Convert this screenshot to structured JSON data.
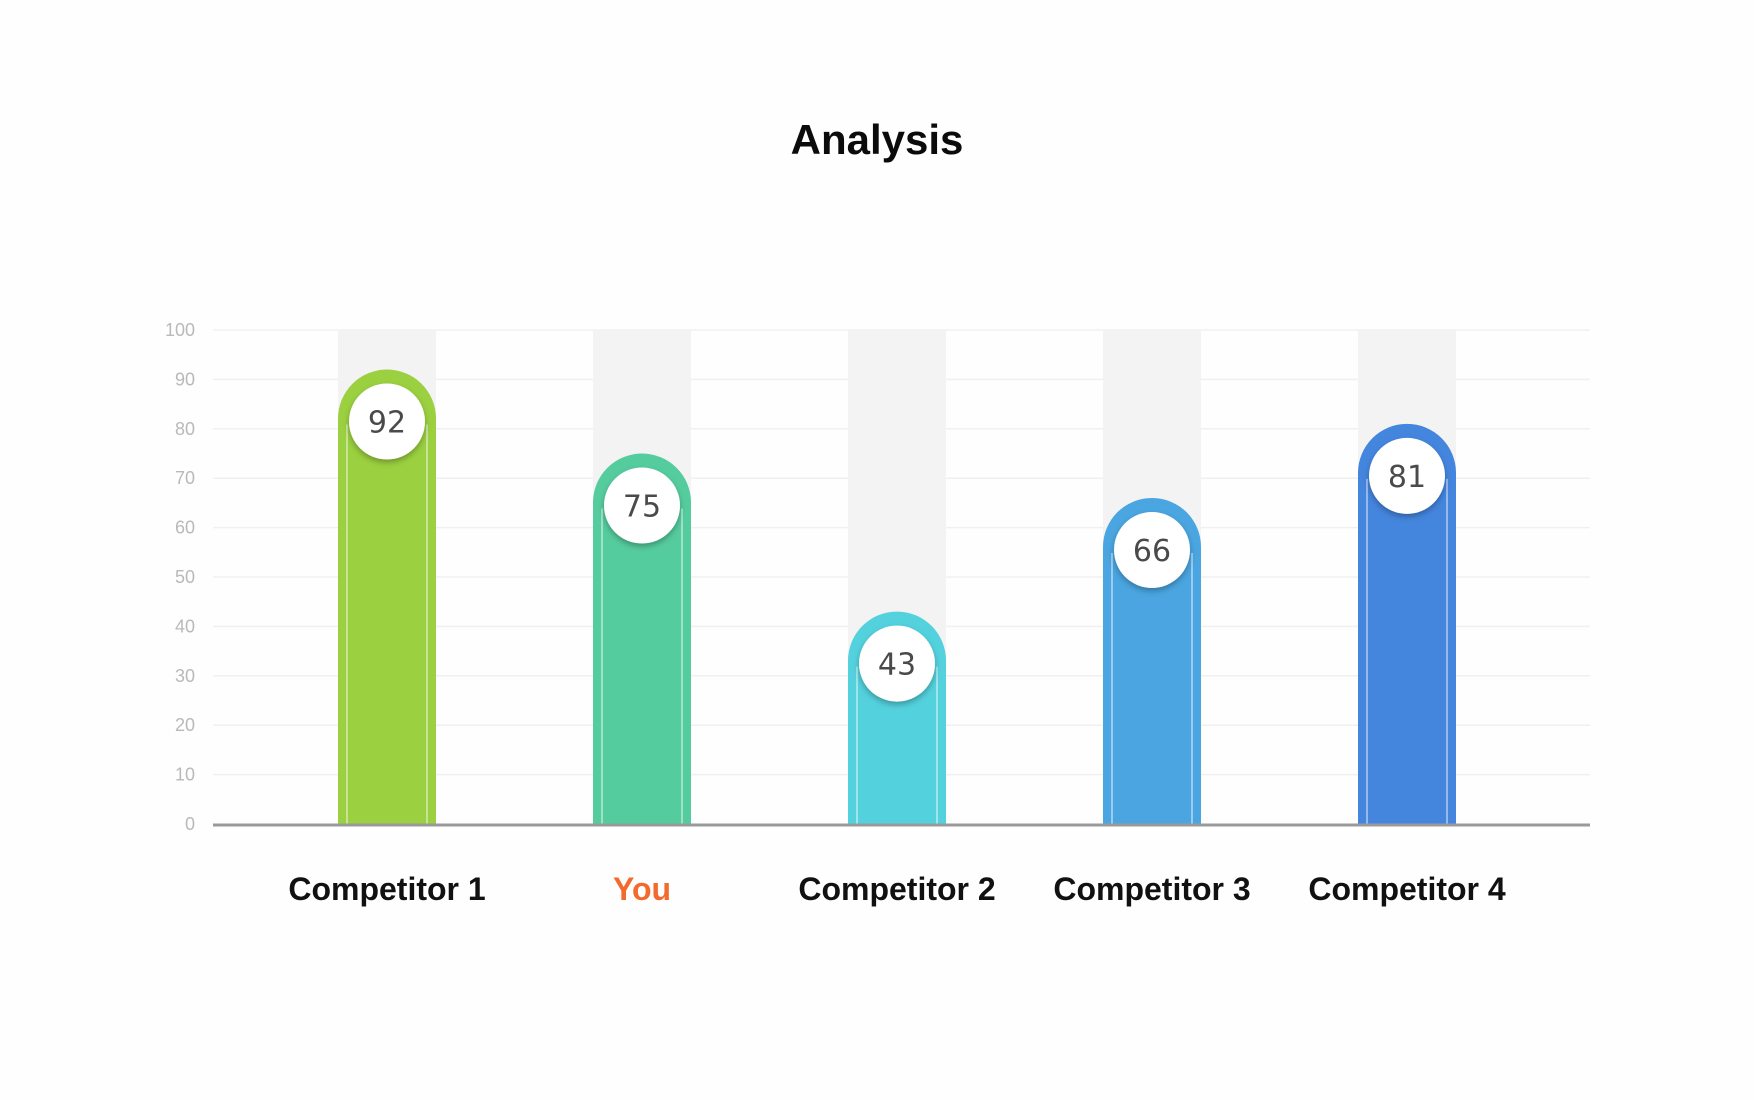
{
  "chart_data": {
    "type": "bar",
    "title": "Analysis",
    "xlabel": "",
    "ylabel": "",
    "ylim": [
      0,
      100
    ],
    "yticks": [
      0,
      10,
      20,
      30,
      40,
      50,
      60,
      70,
      80,
      90,
      100
    ],
    "grid": true,
    "categories": [
      "Competitor 1",
      "You",
      "Competitor 2",
      "Competitor 3",
      "Competitor 4"
    ],
    "values": [
      92,
      75,
      43,
      66,
      81
    ],
    "bar_colors": [
      "#9bd040",
      "#55cc9e",
      "#53d1dd",
      "#4aa5e0",
      "#4485de"
    ],
    "label_colors": [
      "#111111",
      "#f26b2c",
      "#111111",
      "#111111",
      "#111111"
    ],
    "axis_color": "#9a9a9a",
    "gridline_color": "#f0f0f0",
    "bar_track_color": "#f3f3f3"
  }
}
